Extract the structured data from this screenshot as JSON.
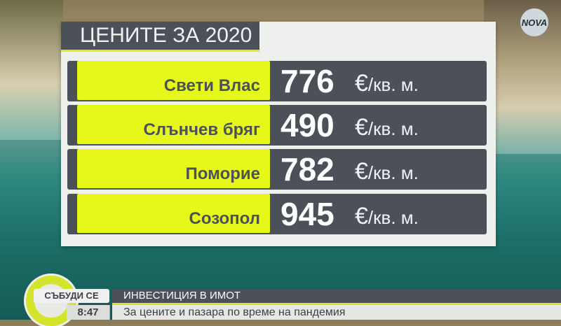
{
  "channel_logo": "NOVA HD",
  "graphic": {
    "title": "ЦЕНИТЕ ЗА 2020 г.",
    "rows": [
      {
        "city": "Свети Влас",
        "price": "776",
        "unit_symbol": "€",
        "unit": "/кв. м."
      },
      {
        "city": "Слънчев бряг",
        "price": "490",
        "unit_symbol": "€",
        "unit": "/кв. м."
      },
      {
        "city": "Поморие",
        "price": "782",
        "unit_symbol": "€",
        "unit": "/кв. м."
      },
      {
        "city": "Созопол",
        "price": "945",
        "unit_symbol": "€",
        "unit": "/кв. м."
      }
    ]
  },
  "lower_third": {
    "show": "СЪБУДИ СЕ",
    "headline": "ИНВЕСТИЦИЯ В ИМОТ",
    "time": "8:47",
    "subtitle": "За цените и пазара по време на пандемия"
  },
  "colors": {
    "accent": "#e6f71a",
    "panel_dark": "#4b5059"
  }
}
